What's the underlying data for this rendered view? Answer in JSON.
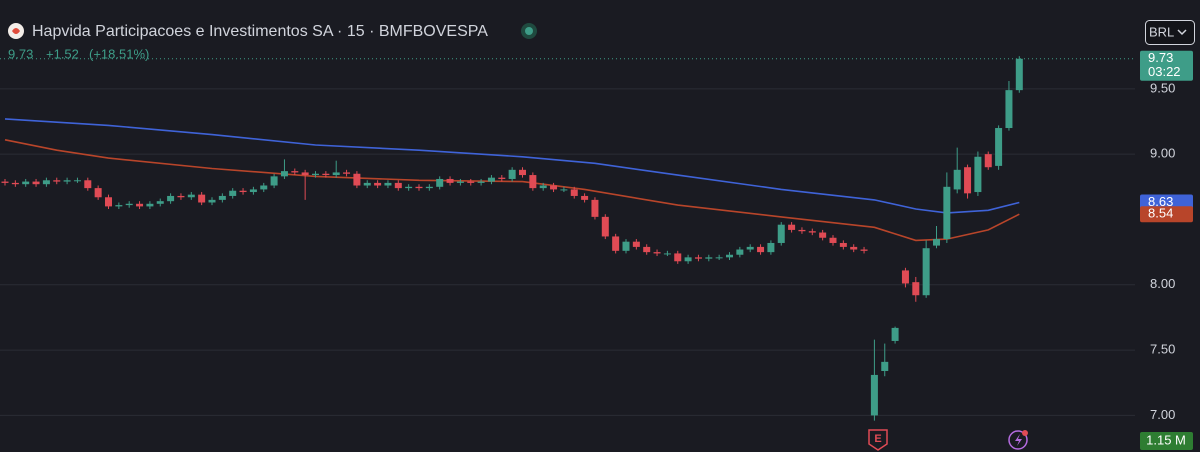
{
  "chart_data": {
    "type": "candlestick",
    "title": "Hapvida Participacoes e Investimentos SA · 15 · BMFBOVESPA",
    "change": "+1.52",
    "change_percent": "(+18.51%)",
    "currency": "BRL",
    "countdown": "03:22",
    "volume_label": "1.15 M",
    "earnings_marker": "E",
    "up_color": "#3e9d88",
    "down_color": "#e04b55",
    "ylim": [
      6.72,
      10.18
    ],
    "yticks": [
      {
        "value": 9.5,
        "label": "9.50"
      },
      {
        "value": 9,
        "label": "9.00"
      },
      {
        "value": 8,
        "label": "8.00"
      },
      {
        "value": 7.5,
        "label": "7.50"
      },
      {
        "value": 7,
        "label": "7.00"
      }
    ],
    "grid": true,
    "open": [
      8.79,
      8.78,
      8.77,
      8.79,
      8.77,
      8.8,
      8.79,
      8.8,
      8.8,
      8.74,
      8.67,
      8.6,
      8.61,
      8.62,
      8.6,
      8.62,
      8.64,
      8.68,
      8.67,
      8.69,
      8.63,
      8.65,
      8.68,
      8.72,
      8.71,
      8.73,
      8.76,
      8.83,
      8.87,
      8.86,
      8.84,
      8.85,
      8.84,
      8.86,
      8.85,
      8.76,
      8.78,
      8.76,
      8.78,
      8.74,
      8.75,
      8.74,
      8.75,
      8.81,
      8.78,
      8.79,
      8.78,
      8.79,
      8.82,
      8.81,
      8.88,
      8.84,
      8.74,
      8.76,
      8.73,
      8.73,
      8.68,
      8.65,
      8.52,
      8.37,
      8.26,
      8.33,
      8.29,
      8.25,
      8.24,
      8.24,
      8.18,
      8.21,
      8.2,
      8.21,
      8.21,
      8.23,
      8.27,
      8.29,
      8.25,
      8.32,
      8.46,
      8.42,
      8.41,
      8.4,
      8.36,
      8.32,
      8.29,
      8.27,
      7.0,
      7.34,
      7.57,
      8.11,
      8.02,
      7.92,
      8.3,
      8.35,
      8.73,
      8.9,
      8.71,
      9.0,
      8.91,
      9.2,
      9.49
    ],
    "high": [
      8.81,
      8.8,
      8.81,
      8.81,
      8.82,
      8.82,
      8.82,
      8.82,
      8.82,
      8.76,
      8.69,
      8.63,
      8.64,
      8.64,
      8.64,
      8.66,
      8.7,
      8.7,
      8.71,
      8.71,
      8.67,
      8.7,
      8.74,
      8.74,
      8.75,
      8.78,
      8.85,
      8.96,
      8.89,
      8.88,
      8.87,
      8.87,
      8.95,
      8.88,
      8.87,
      8.8,
      8.8,
      8.8,
      8.8,
      8.77,
      8.77,
      8.77,
      8.83,
      8.83,
      8.81,
      8.81,
      8.81,
      8.84,
      8.84,
      8.9,
      8.9,
      8.86,
      8.78,
      8.78,
      8.75,
      8.75,
      8.7,
      8.67,
      8.54,
      8.39,
      8.35,
      8.35,
      8.31,
      8.27,
      8.26,
      8.26,
      8.23,
      8.23,
      8.23,
      8.23,
      8.25,
      8.29,
      8.31,
      8.31,
      8.34,
      8.48,
      8.48,
      8.44,
      8.43,
      8.42,
      8.38,
      8.34,
      8.31,
      8.29,
      7.58,
      7.55,
      7.68,
      8.13,
      8.06,
      8.34,
      8.45,
      8.86,
      9.05,
      8.92,
      9.02,
      9.02,
      9.22,
      9.56,
      9.75
    ],
    "low": [
      8.76,
      8.75,
      8.75,
      8.75,
      8.75,
      8.77,
      8.77,
      8.78,
      8.72,
      8.65,
      8.58,
      8.58,
      8.59,
      8.58,
      8.58,
      8.6,
      8.62,
      8.65,
      8.65,
      8.61,
      8.61,
      8.63,
      8.66,
      8.69,
      8.69,
      8.71,
      8.74,
      8.81,
      8.84,
      8.65,
      8.82,
      8.82,
      8.82,
      8.83,
      8.74,
      8.74,
      8.74,
      8.74,
      8.72,
      8.72,
      8.72,
      8.72,
      8.73,
      8.76,
      8.76,
      8.76,
      8.76,
      8.77,
      8.79,
      8.79,
      8.82,
      8.72,
      8.72,
      8.71,
      8.71,
      8.66,
      8.63,
      8.5,
      8.35,
      8.24,
      8.24,
      8.27,
      8.23,
      8.22,
      8.22,
      8.16,
      8.16,
      8.18,
      8.18,
      8.19,
      8.19,
      8.21,
      8.25,
      8.23,
      8.23,
      8.3,
      8.4,
      8.39,
      8.38,
      8.34,
      8.3,
      8.27,
      8.25,
      8.24,
      6.96,
      7.3,
      7.55,
      7.98,
      7.87,
      7.9,
      8.28,
      8.32,
      8.7,
      8.66,
      8.68,
      8.88,
      8.88,
      9.18,
      9.47
    ],
    "close": [
      8.78,
      8.77,
      8.79,
      8.77,
      8.8,
      8.79,
      8.8,
      8.8,
      8.74,
      8.67,
      8.6,
      8.61,
      8.62,
      8.6,
      8.62,
      8.64,
      8.68,
      8.67,
      8.69,
      8.63,
      8.65,
      8.68,
      8.72,
      8.71,
      8.73,
      8.76,
      8.83,
      8.87,
      8.86,
      8.84,
      8.85,
      8.84,
      8.86,
      8.85,
      8.76,
      8.78,
      8.76,
      8.78,
      8.74,
      8.75,
      8.74,
      8.75,
      8.81,
      8.78,
      8.79,
      8.78,
      8.79,
      8.82,
      8.81,
      8.88,
      8.84,
      8.74,
      8.76,
      8.73,
      8.73,
      8.68,
      8.65,
      8.52,
      8.37,
      8.26,
      8.33,
      8.29,
      8.25,
      8.24,
      8.24,
      8.18,
      8.21,
      8.2,
      8.21,
      8.21,
      8.23,
      8.27,
      8.29,
      8.25,
      8.32,
      8.46,
      8.42,
      8.41,
      8.4,
      8.36,
      8.32,
      8.29,
      8.27,
      8.26,
      7.31,
      7.41,
      7.67,
      8.01,
      7.92,
      8.28,
      8.35,
      8.75,
      8.88,
      8.7,
      8.98,
      8.9,
      9.2,
      9.49,
      9.73
    ],
    "series": [
      {
        "color": "#3f63d8",
        "x": [
          0,
          10,
          20,
          30,
          40,
          50,
          57,
          65,
          75,
          84,
          88,
          91,
          95,
          98
        ],
        "values": [
          9.27,
          9.22,
          9.15,
          9.07,
          9.03,
          8.98,
          8.93,
          8.84,
          8.73,
          8.65,
          8.58,
          8.55,
          8.57,
          8.63
        ]
      },
      {
        "color": "#b8452a",
        "x": [
          0,
          5,
          10,
          20,
          30,
          40,
          50,
          56,
          65,
          75,
          84,
          88,
          91,
          95,
          98
        ],
        "values": [
          9.11,
          9.03,
          8.97,
          8.89,
          8.83,
          8.8,
          8.79,
          8.73,
          8.61,
          8.52,
          8.44,
          8.34,
          8.35,
          8.42,
          8.54
        ]
      }
    ]
  }
}
